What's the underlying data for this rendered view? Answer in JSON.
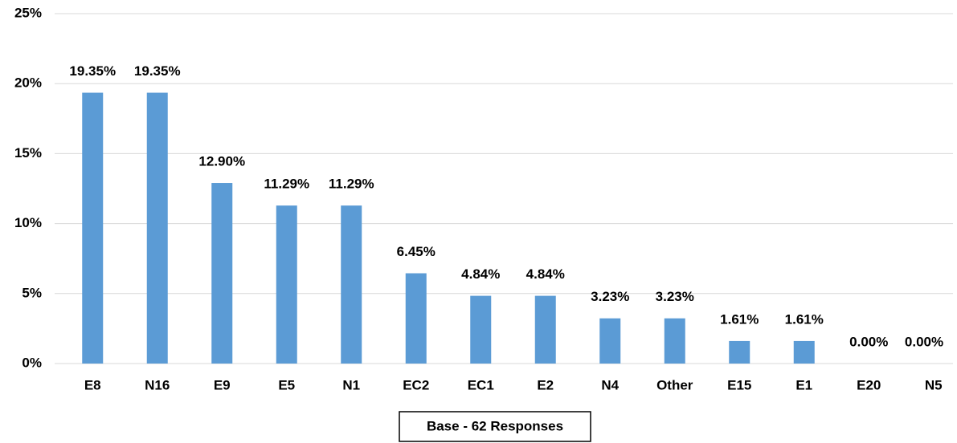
{
  "chart_data": {
    "type": "bar",
    "x_label": "Base - 62 Responses",
    "categories": [
      "E8",
      "N16",
      "E9",
      "E5",
      "N1",
      "EC2",
      "EC1",
      "E2",
      "N4",
      "Other",
      "E15",
      "E1",
      "E20",
      "N5"
    ],
    "values": [
      19.35,
      19.35,
      12.9,
      11.29,
      11.29,
      6.45,
      4.84,
      4.84,
      3.23,
      3.23,
      1.61,
      1.61,
      0.0,
      0.0
    ],
    "value_labels": [
      "19.35%",
      "19.35%",
      "12.90%",
      "11.29%",
      "11.29%",
      "6.45%",
      "4.84%",
      "4.84%",
      "3.23%",
      "3.23%",
      "1.61%",
      "1.61%",
      "0.00%",
      "0.00%"
    ],
    "color": "#5b9bd5",
    "ylim": [
      0,
      25
    ],
    "yticks": [
      {
        "value": 0,
        "label": "0%"
      },
      {
        "value": 5,
        "label": "5%"
      },
      {
        "value": 10,
        "label": "10%"
      },
      {
        "value": 15,
        "label": "15%"
      },
      {
        "value": 20,
        "label": "20%"
      },
      {
        "value": 25,
        "label": "25%"
      }
    ],
    "grid": true
  }
}
